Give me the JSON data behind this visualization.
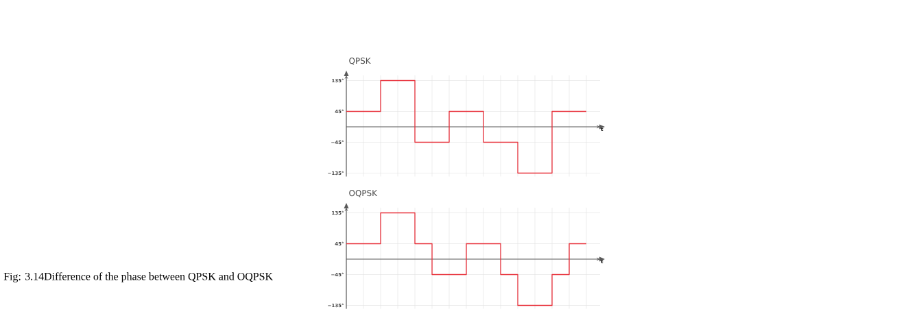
{
  "chart_data": [
    {
      "type": "step",
      "title": "QPSK",
      "xlabel": "t",
      "categories": [
        null,
        null,
        null,
        null,
        null,
        null,
        null,
        null,
        null,
        null,
        null,
        null,
        null,
        null,
        null
      ],
      "series": [
        {
          "color": "#e8303a",
          "values": [
            45,
            45,
            135,
            135,
            -45,
            -45,
            45,
            45,
            -45,
            -45,
            -135,
            -135,
            45,
            45,
            45
          ]
        }
      ],
      "ylim": [
        -145,
        150
      ],
      "yticks": [
        {
          "value": -135,
          "label": "−135°"
        },
        {
          "value": -45,
          "label": "−45°"
        },
        {
          "value": 45,
          "label": "45°"
        },
        {
          "value": 135,
          "label": "135°"
        }
      ],
      "grid": true,
      "tick_labels": "y"
    },
    {
      "type": "step",
      "title": "OQPSK",
      "xlabel": "t",
      "categories": [
        null,
        null,
        null,
        null,
        null,
        null,
        null,
        null,
        null,
        null,
        null,
        null,
        null,
        null,
        null
      ],
      "series": [
        {
          "color": "#e8303a",
          "values": [
            45,
            45,
            135,
            135,
            45,
            -45,
            -45,
            45,
            45,
            -45,
            -135,
            -135,
            -45,
            45,
            45
          ]
        }
      ],
      "ylim": [
        -145,
        150
      ],
      "yticks": [
        {
          "value": -135,
          "label": "−135°"
        },
        {
          "value": -45,
          "label": "−45°"
        },
        {
          "value": 45,
          "label": "45°"
        },
        {
          "value": 135,
          "label": "135°"
        }
      ],
      "grid": true,
      "tick_labels": "y",
      "annotations": [
        "Fig: 3.14Difference of the phase between QPSK and OQPSK"
      ]
    }
  ]
}
